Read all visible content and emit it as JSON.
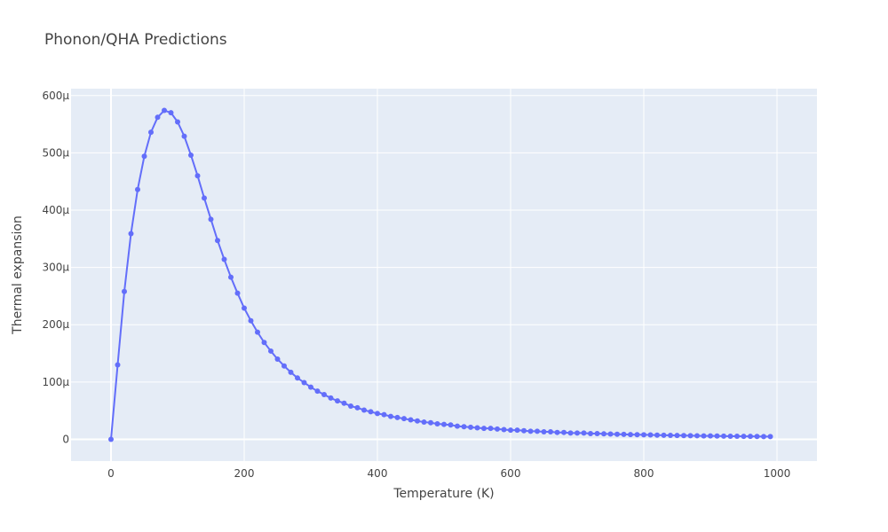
{
  "chart_data": {
    "type": "line",
    "title": "Phonon/QHA Predictions",
    "xlabel": "Temperature (K)",
    "ylabel": "Thermal expansion",
    "xlim": [
      -60,
      1060
    ],
    "ylim": [
      -38,
      612
    ],
    "x_ticks": [
      {
        "value": 0,
        "label": "0"
      },
      {
        "value": 200,
        "label": "200"
      },
      {
        "value": 400,
        "label": "400"
      },
      {
        "value": 600,
        "label": "600"
      },
      {
        "value": 800,
        "label": "800"
      },
      {
        "value": 1000,
        "label": "1000"
      }
    ],
    "y_ticks": [
      {
        "value": 0,
        "label": "0"
      },
      {
        "value": 100,
        "label": "100μ"
      },
      {
        "value": 200,
        "label": "200μ"
      },
      {
        "value": 300,
        "label": "300μ"
      },
      {
        "value": 400,
        "label": "400μ"
      },
      {
        "value": 500,
        "label": "500μ"
      },
      {
        "value": 600,
        "label": "600μ"
      }
    ],
    "y_unit": "μ",
    "grid": true,
    "series_color": "#636efa",
    "plot_background": "#e5ecf6",
    "series": [
      {
        "x": [
          0,
          10,
          20,
          30,
          40,
          50,
          60,
          70,
          80,
          90,
          100,
          110,
          120,
          130,
          140,
          150,
          160,
          170,
          180,
          190,
          200,
          210,
          220,
          230,
          240,
          250,
          260,
          270,
          280,
          290,
          300,
          310,
          320,
          330,
          340,
          350,
          360,
          370,
          380,
          390,
          400,
          410,
          420,
          430,
          440,
          450,
          460,
          470,
          480,
          490,
          500,
          510,
          520,
          530,
          540,
          550,
          560,
          570,
          580,
          590,
          600,
          610,
          620,
          630,
          640,
          650,
          660,
          670,
          680,
          690,
          700,
          710,
          720,
          730,
          740,
          750,
          760,
          770,
          780,
          790,
          800,
          810,
          820,
          830,
          840,
          850,
          860,
          870,
          880,
          890,
          900,
          910,
          920,
          930,
          940,
          950,
          960,
          970,
          980,
          990
        ],
        "y": [
          0,
          130,
          258,
          359,
          436,
          494,
          536,
          562,
          574,
          570,
          554,
          529,
          496,
          460,
          421,
          384,
          347,
          314,
          283,
          255,
          229,
          207,
          187,
          169,
          154,
          140,
          128,
          117,
          107,
          99,
          91,
          84,
          78,
          72,
          67,
          63,
          58,
          55,
          51,
          48,
          45,
          43,
          40,
          38,
          36,
          34,
          32,
          30,
          29,
          27,
          26,
          25,
          23,
          22,
          21,
          20,
          19,
          19,
          18,
          17,
          16,
          16,
          15,
          14,
          14,
          13,
          13,
          12,
          12,
          11,
          11,
          11,
          10,
          10,
          9.5,
          9.2,
          8.9,
          8.6,
          8.3,
          8.0,
          7.8,
          7.6,
          7.3,
          7.1,
          6.9,
          6.7,
          6.5,
          6.3,
          6.2,
          6.0,
          5.9,
          5.7,
          5.6,
          5.4,
          5.3,
          5.2,
          5.1,
          4.9,
          4.8,
          4.7
        ]
      }
    ]
  }
}
